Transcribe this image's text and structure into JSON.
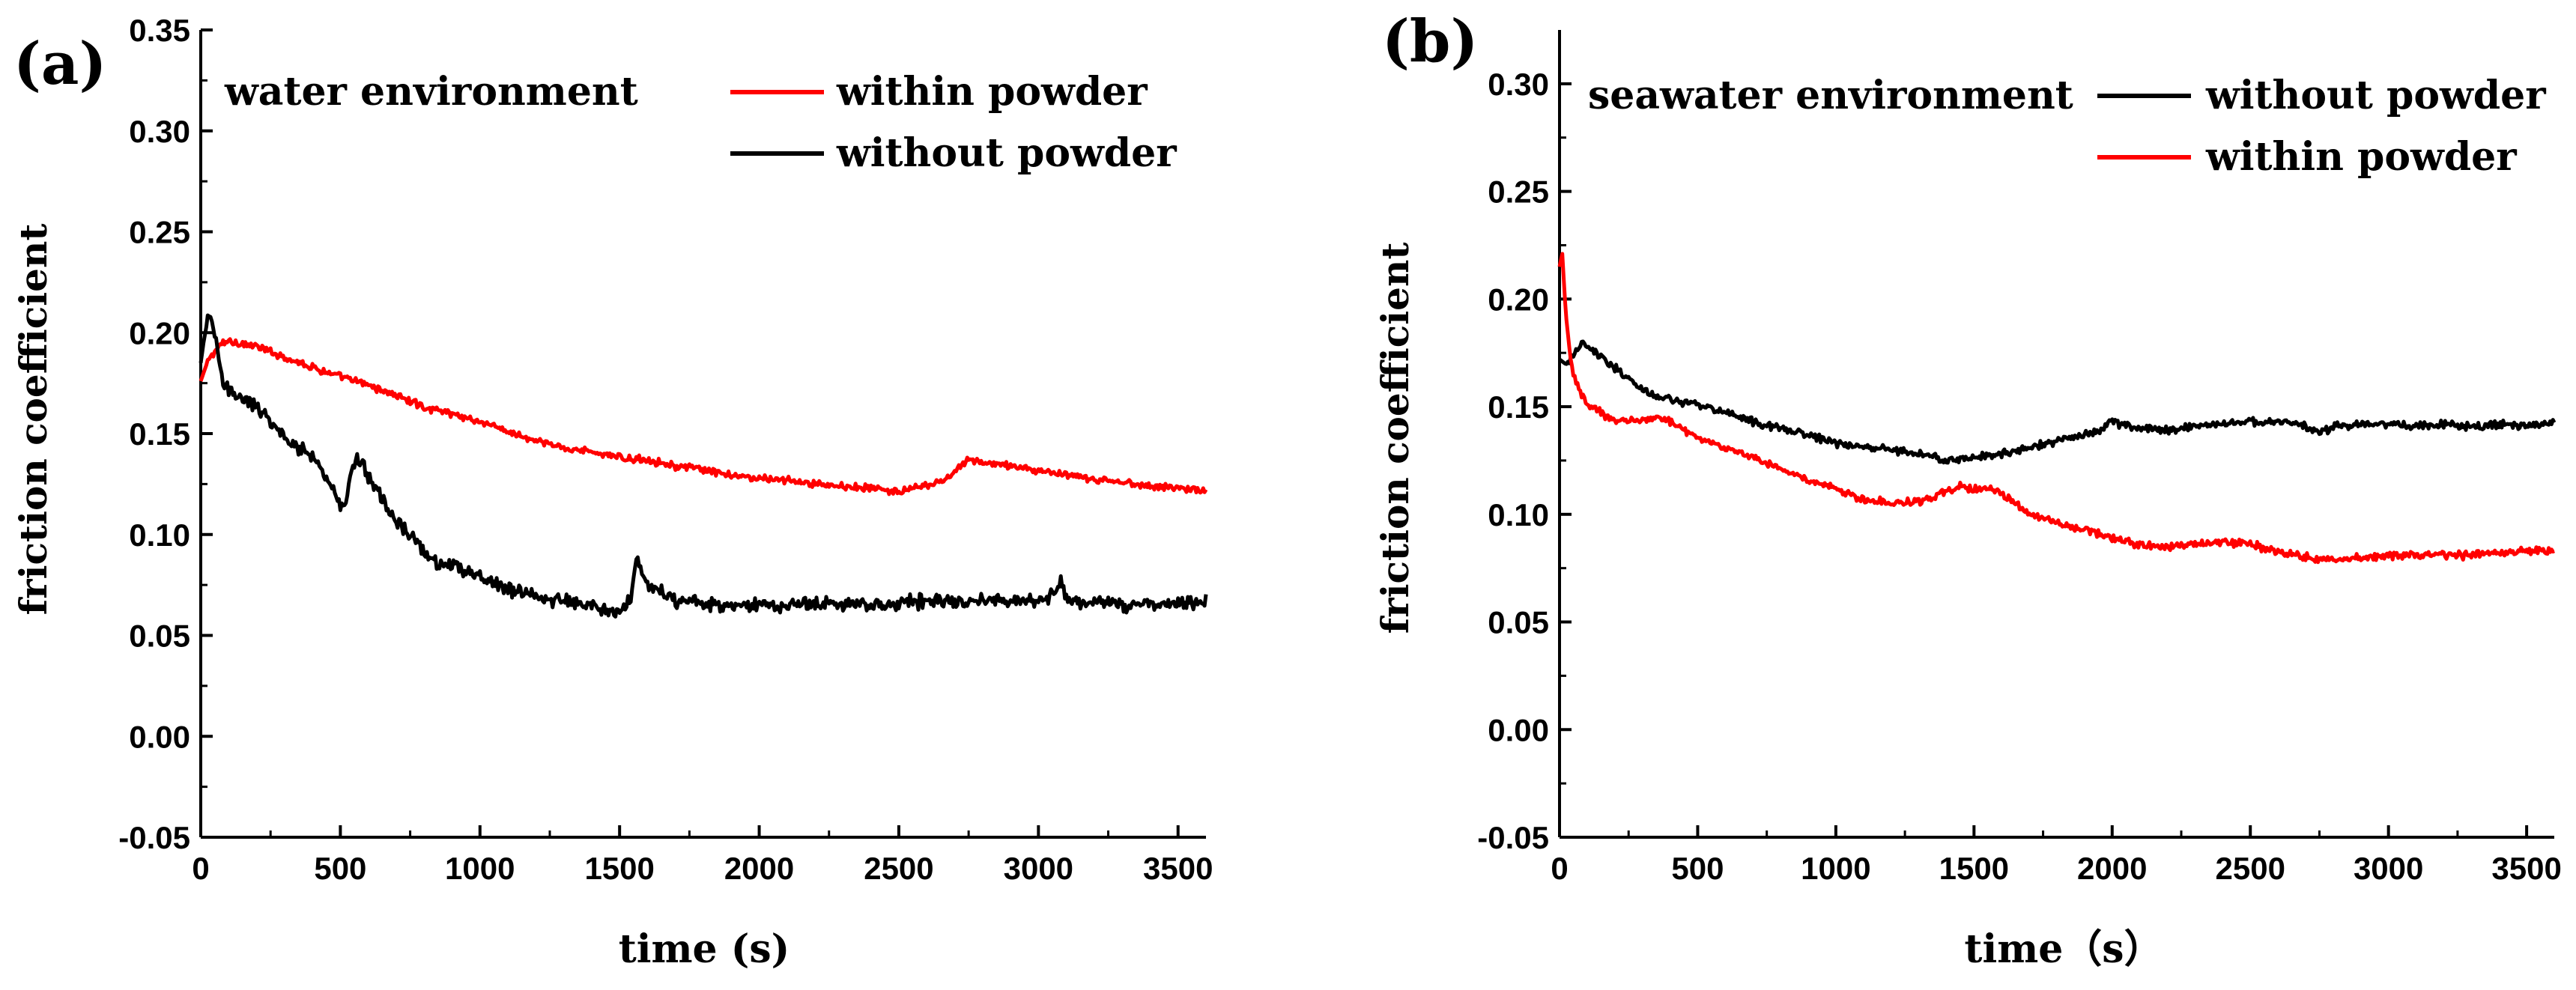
{
  "chart_data": [
    {
      "panel_label": "(a)",
      "type": "line",
      "title": "water environment",
      "xlabel": "time (s)",
      "ylabel": "friction coefficient",
      "xlim": [
        0,
        3600
      ],
      "ylim": [
        -0.05,
        0.35
      ],
      "xticks": [
        0,
        500,
        1000,
        1500,
        2000,
        2500,
        3000,
        3500
      ],
      "yticks": [
        -0.05,
        0.0,
        0.05,
        0.1,
        0.15,
        0.2,
        0.25,
        0.3,
        0.35
      ],
      "ytick_labels": [
        "-0.05",
        "0.00",
        "0.05",
        "0.10",
        "0.15",
        "0.20",
        "0.25",
        "0.30",
        "0.35"
      ],
      "legend": [
        "within powder",
        "without powder"
      ],
      "series": [
        {
          "name": "within powder",
          "color": "#ff0000",
          "x": [
            0,
            20,
            40,
            60,
            80,
            100,
            200,
            300,
            400,
            500,
            600,
            700,
            800,
            900,
            1000,
            1100,
            1200,
            1300,
            1400,
            1500,
            1600,
            1700,
            1800,
            1900,
            2000,
            2100,
            2200,
            2300,
            2400,
            2500,
            2600,
            2650,
            2700,
            2750,
            2800,
            2900,
            3000,
            3100,
            3200,
            3300,
            3400,
            3500,
            3600
          ],
          "y": [
            0.176,
            0.184,
            0.189,
            0.192,
            0.195,
            0.196,
            0.193,
            0.188,
            0.183,
            0.178,
            0.174,
            0.169,
            0.163,
            0.16,
            0.156,
            0.151,
            0.146,
            0.143,
            0.141,
            0.138,
            0.137,
            0.134,
            0.132,
            0.129,
            0.128,
            0.127,
            0.125,
            0.124,
            0.123,
            0.121,
            0.124,
            0.126,
            0.131,
            0.137,
            0.136,
            0.134,
            0.132,
            0.129,
            0.127,
            0.126,
            0.124,
            0.123,
            0.122
          ]
        },
        {
          "name": "without powder",
          "color": "#000000",
          "x": [
            0,
            10,
            20,
            30,
            40,
            50,
            60,
            70,
            80,
            100,
            150,
            200,
            250,
            300,
            350,
            400,
            450,
            500,
            520,
            540,
            560,
            580,
            600,
            650,
            700,
            750,
            800,
            850,
            900,
            950,
            1000,
            1050,
            1100,
            1150,
            1200,
            1250,
            1300,
            1350,
            1400,
            1450,
            1500,
            1540,
            1560,
            1580,
            1600,
            1650,
            1700,
            1750,
            1800,
            1900,
            2000,
            2100,
            2200,
            2300,
            2400,
            2500,
            2600,
            2700,
            2800,
            2900,
            3000,
            3050,
            3080,
            3100,
            3150,
            3200,
            3300,
            3400,
            3500,
            3600
          ],
          "y": [
            0.185,
            0.195,
            0.203,
            0.209,
            0.206,
            0.199,
            0.19,
            0.18,
            0.175,
            0.172,
            0.168,
            0.163,
            0.156,
            0.148,
            0.143,
            0.139,
            0.129,
            0.114,
            0.116,
            0.133,
            0.138,
            0.134,
            0.129,
            0.118,
            0.106,
            0.101,
            0.092,
            0.086,
            0.084,
            0.082,
            0.079,
            0.076,
            0.073,
            0.071,
            0.069,
            0.068,
            0.067,
            0.065,
            0.066,
            0.063,
            0.061,
            0.069,
            0.088,
            0.082,
            0.076,
            0.072,
            0.067,
            0.069,
            0.066,
            0.064,
            0.066,
            0.065,
            0.066,
            0.066,
            0.065,
            0.066,
            0.067,
            0.066,
            0.068,
            0.067,
            0.067,
            0.069,
            0.077,
            0.068,
            0.066,
            0.067,
            0.065,
            0.066,
            0.066,
            0.067
          ]
        }
      ]
    },
    {
      "panel_label": "(b)",
      "type": "line",
      "title": "seawater environment",
      "xlabel": "time（s）",
      "ylabel": "friction coefficient",
      "xlim": [
        0,
        3600
      ],
      "ylim": [
        -0.05,
        0.325
      ],
      "xticks": [
        0,
        500,
        1000,
        1500,
        2000,
        2500,
        3000,
        3500
      ],
      "yticks": [
        -0.05,
        0.0,
        0.05,
        0.1,
        0.15,
        0.2,
        0.25,
        0.3
      ],
      "ytick_labels": [
        "-0.05",
        "0.00",
        "0.05",
        "0.10",
        "0.15",
        "0.20",
        "0.25",
        "0.30"
      ],
      "legend": [
        "without powder",
        "within powder"
      ],
      "series": [
        {
          "name": "without powder",
          "color": "#000000",
          "x": [
            0,
            20,
            40,
            60,
            80,
            100,
            150,
            200,
            250,
            300,
            350,
            400,
            450,
            500,
            600,
            700,
            800,
            900,
            1000,
            1100,
            1200,
            1300,
            1400,
            1500,
            1600,
            1700,
            1800,
            1900,
            1950,
            2000,
            2050,
            2100,
            2200,
            2300,
            2400,
            2500,
            2600,
            2700,
            2750,
            2800,
            2900,
            3000,
            3100,
            3200,
            3300,
            3400,
            3500,
            3600
          ],
          "y": [
            0.172,
            0.17,
            0.172,
            0.176,
            0.179,
            0.178,
            0.173,
            0.168,
            0.163,
            0.158,
            0.155,
            0.153,
            0.152,
            0.151,
            0.147,
            0.143,
            0.14,
            0.137,
            0.133,
            0.131,
            0.13,
            0.128,
            0.125,
            0.126,
            0.128,
            0.131,
            0.134,
            0.137,
            0.139,
            0.143,
            0.141,
            0.14,
            0.139,
            0.141,
            0.142,
            0.143,
            0.143,
            0.141,
            0.137,
            0.141,
            0.142,
            0.142,
            0.141,
            0.142,
            0.141,
            0.142,
            0.141,
            0.142
          ]
        },
        {
          "name": "within powder",
          "color": "#ff0000",
          "x": [
            0,
            10,
            20,
            30,
            40,
            50,
            60,
            80,
            100,
            150,
            200,
            250,
            300,
            350,
            400,
            500,
            600,
            700,
            800,
            900,
            1000,
            1100,
            1200,
            1300,
            1350,
            1400,
            1450,
            1500,
            1550,
            1600,
            1650,
            1700,
            1800,
            1900,
            2000,
            2100,
            2200,
            2300,
            2400,
            2500,
            2600,
            2700,
            2800,
            2900,
            3000,
            3100,
            3200,
            3300,
            3400,
            3500,
            3600
          ],
          "y": [
            0.215,
            0.221,
            0.199,
            0.183,
            0.172,
            0.166,
            0.161,
            0.155,
            0.151,
            0.147,
            0.144,
            0.143,
            0.144,
            0.145,
            0.143,
            0.136,
            0.131,
            0.126,
            0.121,
            0.116,
            0.112,
            0.107,
            0.105,
            0.106,
            0.107,
            0.111,
            0.113,
            0.112,
            0.112,
            0.11,
            0.105,
            0.1,
            0.096,
            0.093,
            0.089,
            0.086,
            0.085,
            0.086,
            0.087,
            0.086,
            0.083,
            0.08,
            0.079,
            0.08,
            0.081,
            0.081,
            0.081,
            0.081,
            0.082,
            0.083,
            0.083
          ]
        }
      ]
    }
  ]
}
